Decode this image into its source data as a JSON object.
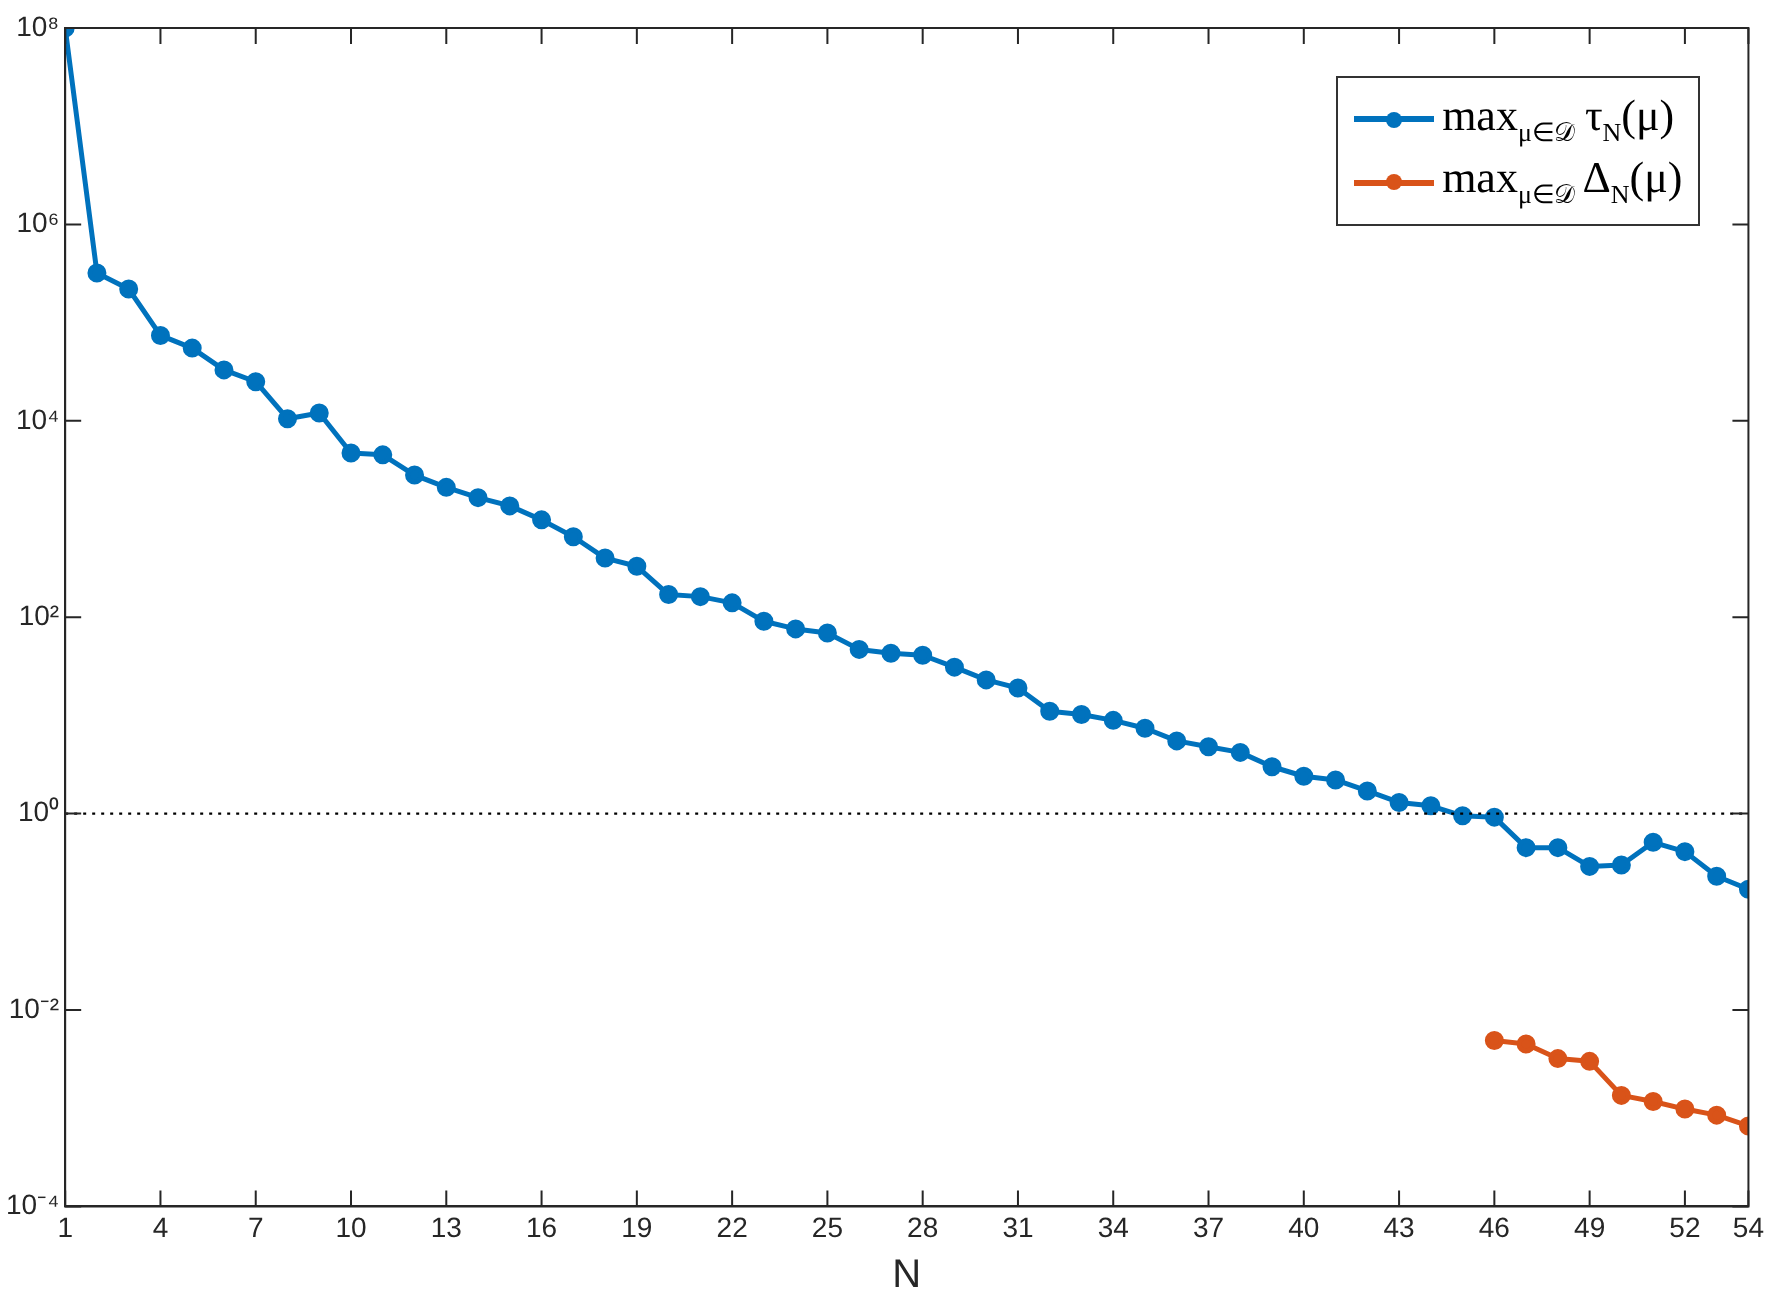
{
  "chart_data": {
    "type": "line",
    "xlabel": "N",
    "x": [
      1,
      2,
      3,
      4,
      5,
      6,
      7,
      8,
      9,
      10,
      11,
      12,
      13,
      14,
      15,
      16,
      17,
      18,
      19,
      20,
      21,
      22,
      23,
      24,
      25,
      26,
      27,
      28,
      29,
      30,
      31,
      32,
      33,
      34,
      35,
      36,
      37,
      38,
      39,
      40,
      41,
      42,
      43,
      44,
      45,
      46,
      47,
      48,
      49,
      50,
      51,
      52,
      53,
      54
    ],
    "series": [
      {
        "name": "max$_{μ∈𝒟}$ τ$_{N}$(μ)",
        "color": "#0072bd",
        "values": [
          100000000.0,
          320000.0,
          220000.0,
          74000.0,
          55000.0,
          33000.0,
          25000.0,
          10500.0,
          12000.0,
          4700.0,
          4500.0,
          2800.0,
          2100.0,
          1650.0,
          1360.0,
          980,
          660,
          400,
          330,
          170,
          162,
          140,
          91,
          76,
          69,
          47,
          43,
          41,
          31,
          23,
          19,
          11,
          10.2,
          8.9,
          7.4,
          5.5,
          4.8,
          4.2,
          3.0,
          2.4,
          2.2,
          1.7,
          1.3,
          1.2,
          0.95,
          0.92,
          0.45,
          0.45,
          0.29,
          0.3,
          0.51,
          0.41,
          0.23,
          0.17
        ]
      },
      {
        "name": "max$_{μ∈𝒟}$ Δ$_{N}$(μ)",
        "color": "#d95319",
        "x": [
          46,
          47,
          48,
          49,
          50,
          51,
          52,
          53,
          54
        ],
        "values": [
          0.0049,
          0.0045,
          0.0032,
          0.003,
          0.00135,
          0.00117,
          0.00098,
          0.00085,
          0.00066
        ]
      }
    ],
    "log": "y",
    "xlim": [
      1,
      54
    ],
    "xticks": [
      1,
      4,
      7,
      10,
      13,
      16,
      19,
      22,
      25,
      28,
      31,
      34,
      37,
      40,
      43,
      46,
      49,
      52,
      54
    ],
    "ylim": [
      0.0001,
      100000000
    ],
    "yticks": [
      {
        "value": 0.0001,
        "label": "10⁻⁴"
      },
      {
        "value": 0.01,
        "label": "10⁻²"
      },
      {
        "value": 1,
        "label": "10⁰"
      },
      {
        "value": 100,
        "label": "10²"
      },
      {
        "value": 10000,
        "label": "10⁴"
      },
      {
        "value": 1000000,
        "label": "10⁶"
      },
      {
        "value": 100000000,
        "label": "10⁸"
      }
    ],
    "ref_lines": [
      {
        "axis": "y",
        "value": 1,
        "color": "#000000",
        "line_style": "dotted"
      }
    ],
    "grid": false,
    "legend": "top right",
    "marker": "circle",
    "line_style": "solid"
  }
}
